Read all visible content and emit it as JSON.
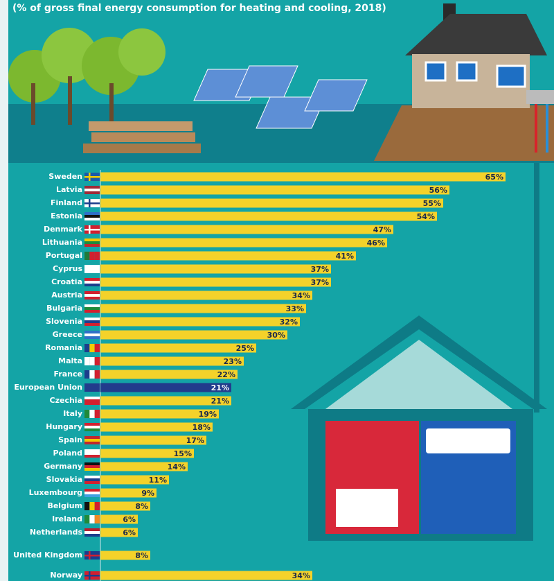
{
  "chart_data": {
    "type": "bar",
    "orientation": "horizontal",
    "subtitle": "(% of gross final energy consumption for heating and cooling, 2018)",
    "categories": [
      "Sweden",
      "Latvia",
      "Finland",
      "Estonia",
      "Denmark",
      "Lithuania",
      "Portugal",
      "Cyprus",
      "Croatia",
      "Austria",
      "Bulgaria",
      "Slovenia",
      "Greece",
      "Romania",
      "Malta",
      "France",
      "European Union",
      "Czechia",
      "Italy",
      "Hungary",
      "Spain",
      "Poland",
      "Germany",
      "Slovakia",
      "Luxembourg",
      "Belgium",
      "Ireland",
      "Netherlands",
      "United Kingdom",
      "Norway"
    ],
    "values": [
      65,
      56,
      55,
      54,
      47,
      46,
      41,
      37,
      37,
      34,
      33,
      32,
      30,
      25,
      23,
      22,
      21,
      21,
      19,
      18,
      17,
      15,
      14,
      11,
      9,
      8,
      6,
      6,
      8,
      34
    ],
    "value_labels": [
      "65%",
      "56%",
      "55%",
      "54%",
      "47%",
      "46%",
      "41%",
      "37%",
      "37%",
      "34%",
      "33%",
      "32%",
      "30%",
      "25%",
      "23%",
      "22%",
      "21%",
      "21%",
      "19%",
      "18%",
      "17%",
      "15%",
      "14%",
      "11%",
      "9%",
      "8%",
      "6%",
      "6%",
      "8%",
      "34%"
    ],
    "color": "#f4d22a",
    "highlight": {
      "category": "European Union",
      "color": "#223c8c"
    }
  }
}
